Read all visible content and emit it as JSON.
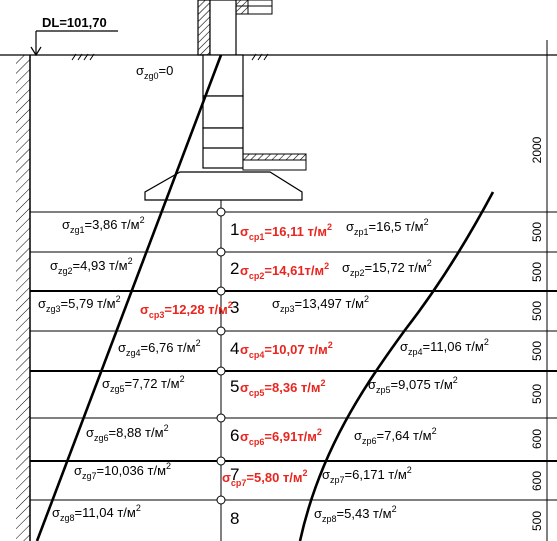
{
  "datum_label": "DL=101,70",
  "sigma_zg0": {
    "sym": "σ",
    "sub": "zg0",
    "val": "=0"
  },
  "dimensions": [
    "2000",
    "500",
    "500",
    "500",
    "500",
    "500",
    "600",
    "600",
    "500"
  ],
  "points": [
    "1",
    "2",
    "3",
    "4",
    "5",
    "6",
    "7",
    "8"
  ],
  "zg": [
    {
      "sub": "zg1",
      "val": "=3,86 т/м",
      "sup": "2"
    },
    {
      "sub": "zg2",
      "val": "=4,93 т/м",
      "sup": "2"
    },
    {
      "sub": "zg3",
      "val": "=5,79 т/м",
      "sup": "2"
    },
    {
      "sub": "zg4",
      "val": "=6,76 т/м",
      "sup": "2"
    },
    {
      "sub": "zg5",
      "val": "=7,72 т/м",
      "sup": "2"
    },
    {
      "sub": "zg6",
      "val": "=8,88 т/м",
      "sup": "2"
    },
    {
      "sub": "zg7",
      "val": "=10,036 т/м",
      "sup": "2"
    },
    {
      "sub": "zg8",
      "val": "=11,04 т/м",
      "sup": "2"
    }
  ],
  "cp": [
    {
      "sub": "cp1",
      "val": "=16,11 т/м",
      "sup": "2"
    },
    {
      "sub": "cp2",
      "val": "=14,61т/м",
      "sup": "2"
    },
    {
      "sub": "cp3",
      "val": "=12,28 т/м",
      "sup": "2"
    },
    {
      "sub": "cp4",
      "val": "=10,07 т/м",
      "sup": "2"
    },
    {
      "sub": "cp5",
      "val": "=8,36 т/м",
      "sup": "2"
    },
    {
      "sub": "cp6",
      "val": "=6,91т/м",
      "sup": "2"
    },
    {
      "sub": "cp7",
      "val": "=5,80 т/м",
      "sup": "2"
    }
  ],
  "zp": [
    {
      "sub": "zp1",
      "val": "=16,5 т/м",
      "sup": "2"
    },
    {
      "sub": "zp2",
      "val": "=15,72 т/м",
      "sup": "2"
    },
    {
      "sub": "zp3",
      "val": "=13,497 т/м",
      "sup": "2"
    },
    {
      "sub": "zp4",
      "val": "=11,06 т/м",
      "sup": "2"
    },
    {
      "sub": "zp5",
      "val": "=9,075 т/м",
      "sup": "2"
    },
    {
      "sub": "zp6",
      "val": "=7,64 т/м",
      "sup": "2"
    },
    {
      "sub": "zp7",
      "val": "=6,171 т/м",
      "sup": "2"
    },
    {
      "sub": "zp8",
      "val": "=5,43 т/м",
      "sup": "2"
    }
  ],
  "colors": {
    "line": "#000000",
    "red": "#e8261f",
    "bg": "#ffffff"
  }
}
